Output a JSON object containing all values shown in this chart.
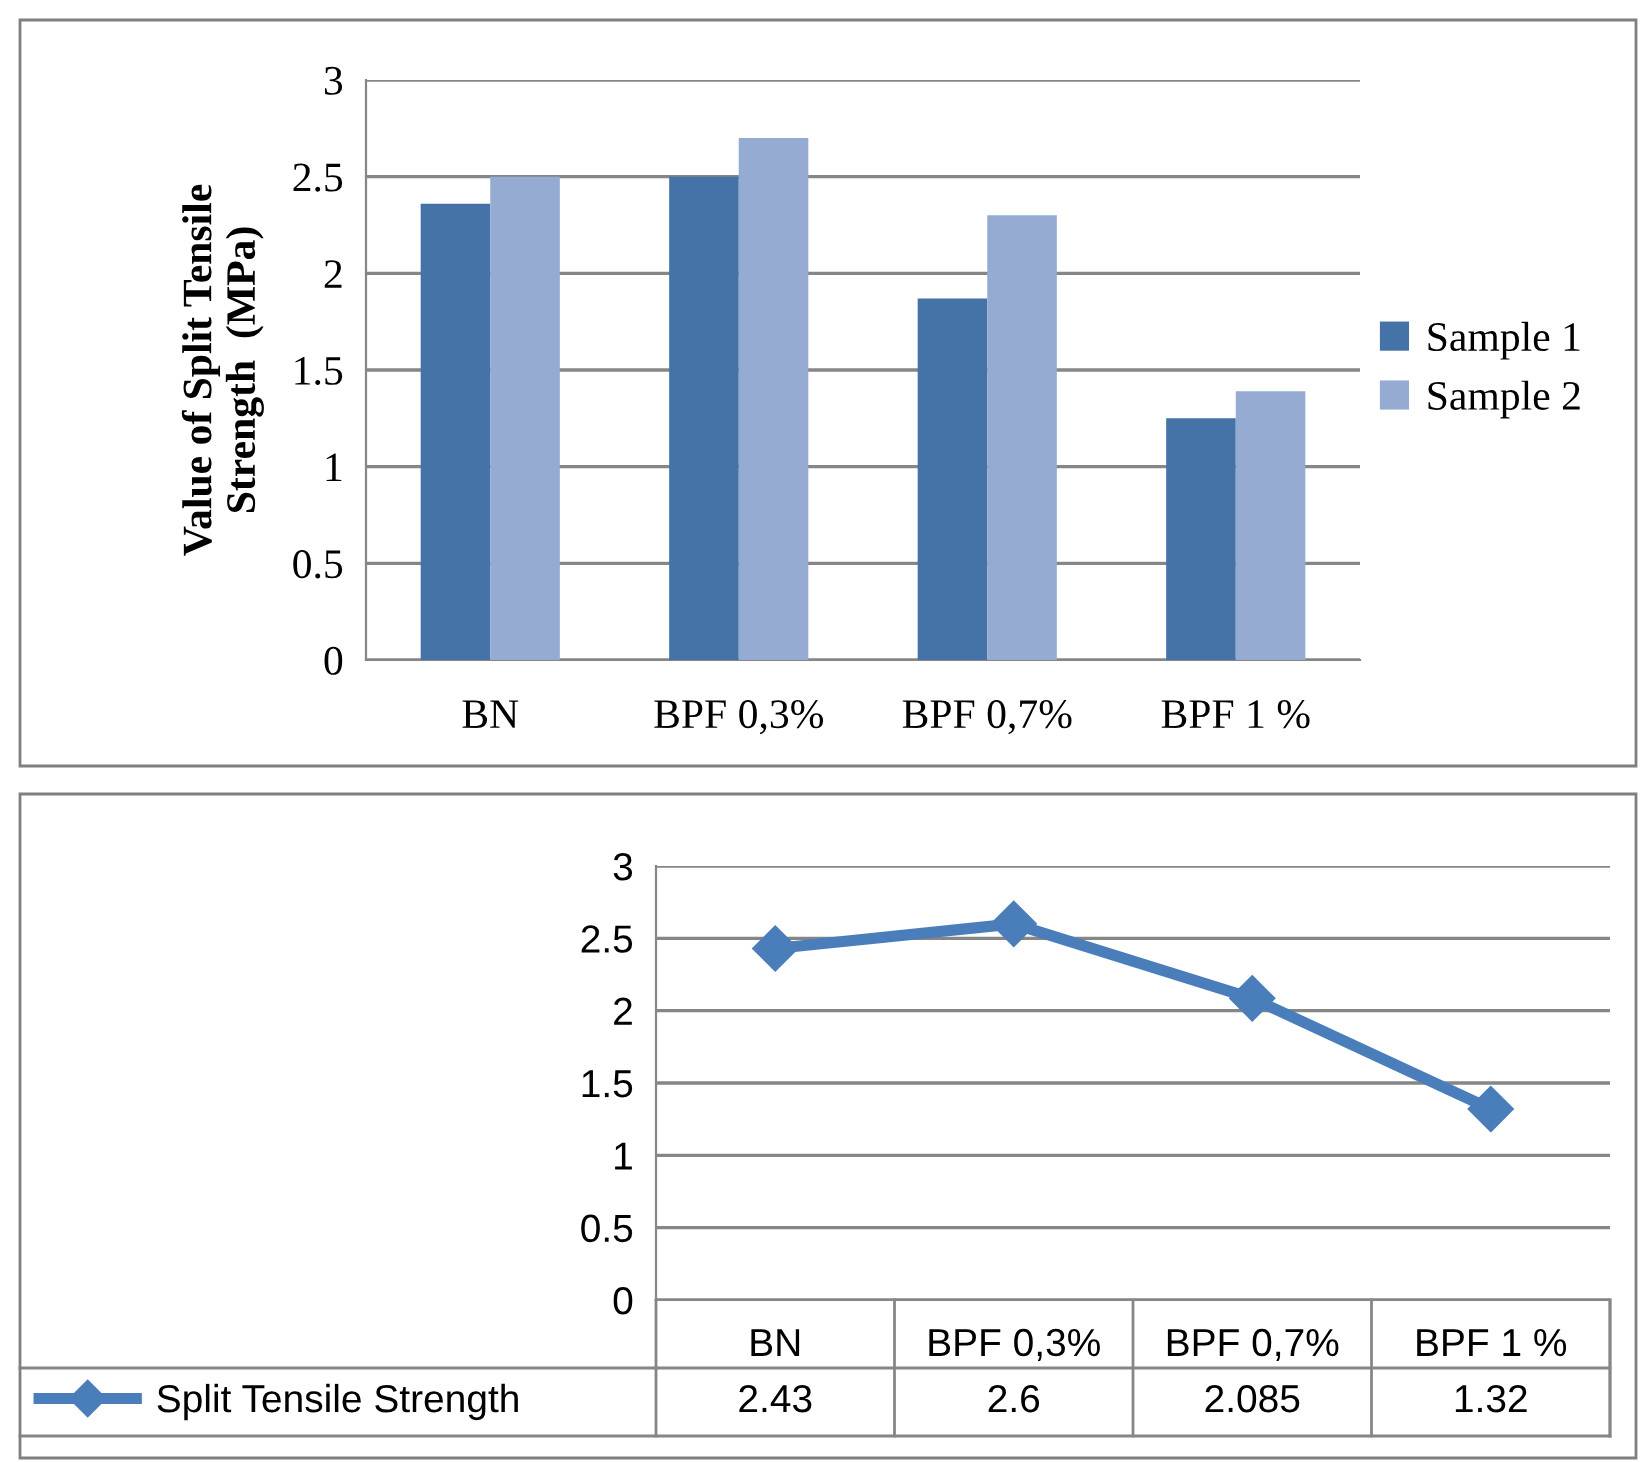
{
  "chart_data": [
    {
      "type": "bar",
      "ylabel": "Value of Split Tensile\nStrength  (MPa)",
      "categories": [
        "BN",
        "BPF 0,3%",
        "BPF 0,7%",
        "BPF 1 %"
      ],
      "series": [
        {
          "name": "Sample 1",
          "color": "#4572a7",
          "values": [
            2.36,
            2.5,
            1.87,
            1.25
          ]
        },
        {
          "name": "Sample 2",
          "color": "#95abd2",
          "values": [
            2.5,
            2.7,
            2.3,
            1.39
          ]
        }
      ],
      "ylim": [
        0,
        3
      ],
      "yticks": [
        0,
        0.5,
        1,
        1.5,
        2,
        2.5,
        3
      ],
      "grid": "y",
      "legend": "right"
    },
    {
      "type": "line",
      "categories": [
        "BN",
        "BPF 0,3%",
        "BPF 0,7%",
        "BPF 1 %"
      ],
      "series": [
        {
          "name": "Split Tensile Strength",
          "color": "#4a7ebb",
          "values": [
            2.43,
            2.6,
            2.085,
            1.32
          ]
        }
      ],
      "ylim": [
        0,
        3
      ],
      "yticks": [
        0,
        0.5,
        1,
        1.5,
        2,
        2.5,
        3
      ],
      "grid": "y",
      "legend": "bottom",
      "marker": "diamond",
      "data_labels": true
    }
  ]
}
